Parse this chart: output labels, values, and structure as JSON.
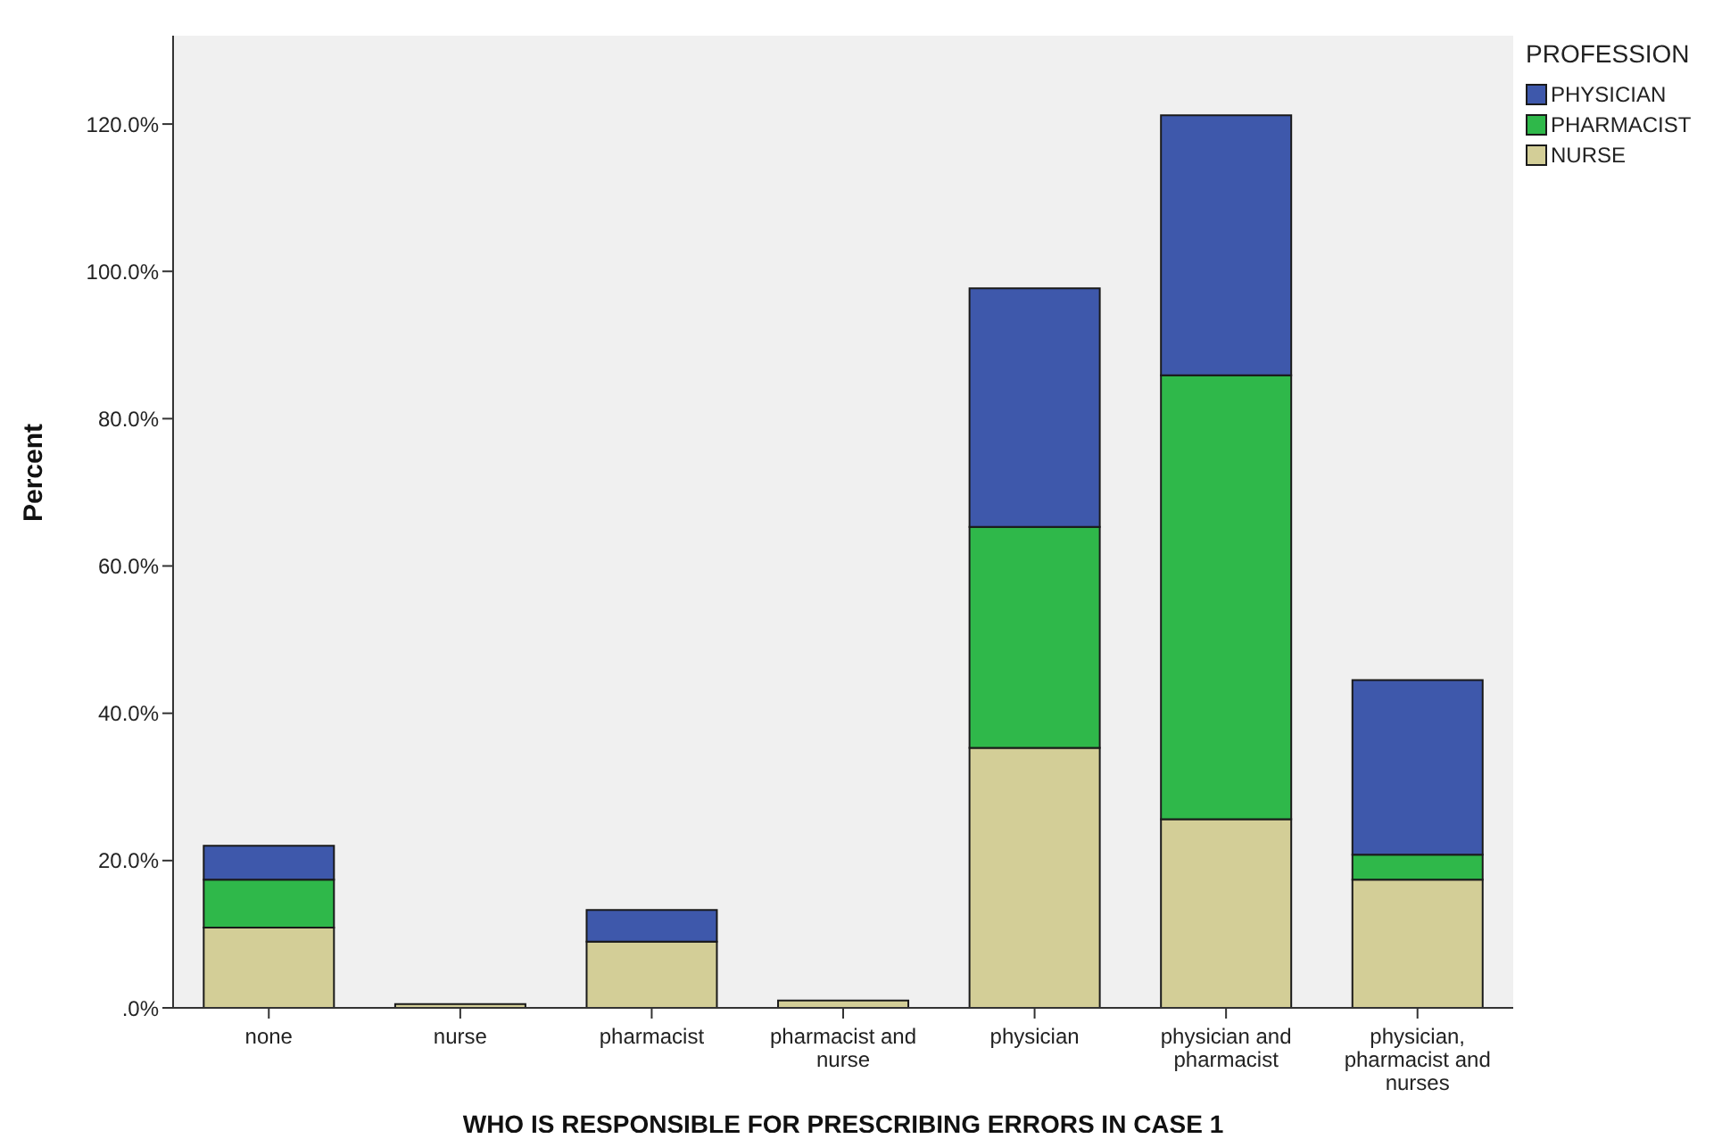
{
  "chart_data": {
    "type": "bar",
    "stacked": true,
    "xlabel": "WHO IS RESPONSIBLE FOR PRESCRIBING ERRORS IN CASE 1",
    "ylabel": "Percent",
    "legend_title": "PROFESSION",
    "legend": "right",
    "categories": [
      "none",
      "nurse",
      "pharmacist",
      "pharmacist and nurse",
      "physician",
      "physician and pharmacist",
      "physician, pharmacist and nurses"
    ],
    "series": [
      {
        "name": "NURSE",
        "color": "#d3ce97",
        "values": [
          10.9,
          0.5,
          9.0,
          1.0,
          35.3,
          25.6,
          17.4
        ]
      },
      {
        "name": "PHARMACIST",
        "color": "#2fb84a",
        "values": [
          6.5,
          0,
          0,
          0,
          30.0,
          60.3,
          3.4
        ]
      },
      {
        "name": "PHYSICIAN",
        "color": "#3e58ab",
        "values": [
          4.6,
          0,
          4.3,
          0,
          32.4,
          35.3,
          23.7
        ]
      }
    ],
    "ylim": [
      0,
      132
    ],
    "yticks": [
      {
        "value": 0,
        "label": ".0%"
      },
      {
        "value": 20,
        "label": "20.0%"
      },
      {
        "value": 40,
        "label": "40.0%"
      },
      {
        "value": 60,
        "label": "60.0%"
      },
      {
        "value": 80,
        "label": "80.0%"
      },
      {
        "value": 100,
        "label": "100.0%"
      },
      {
        "value": 120,
        "label": "120.0%"
      }
    ]
  }
}
